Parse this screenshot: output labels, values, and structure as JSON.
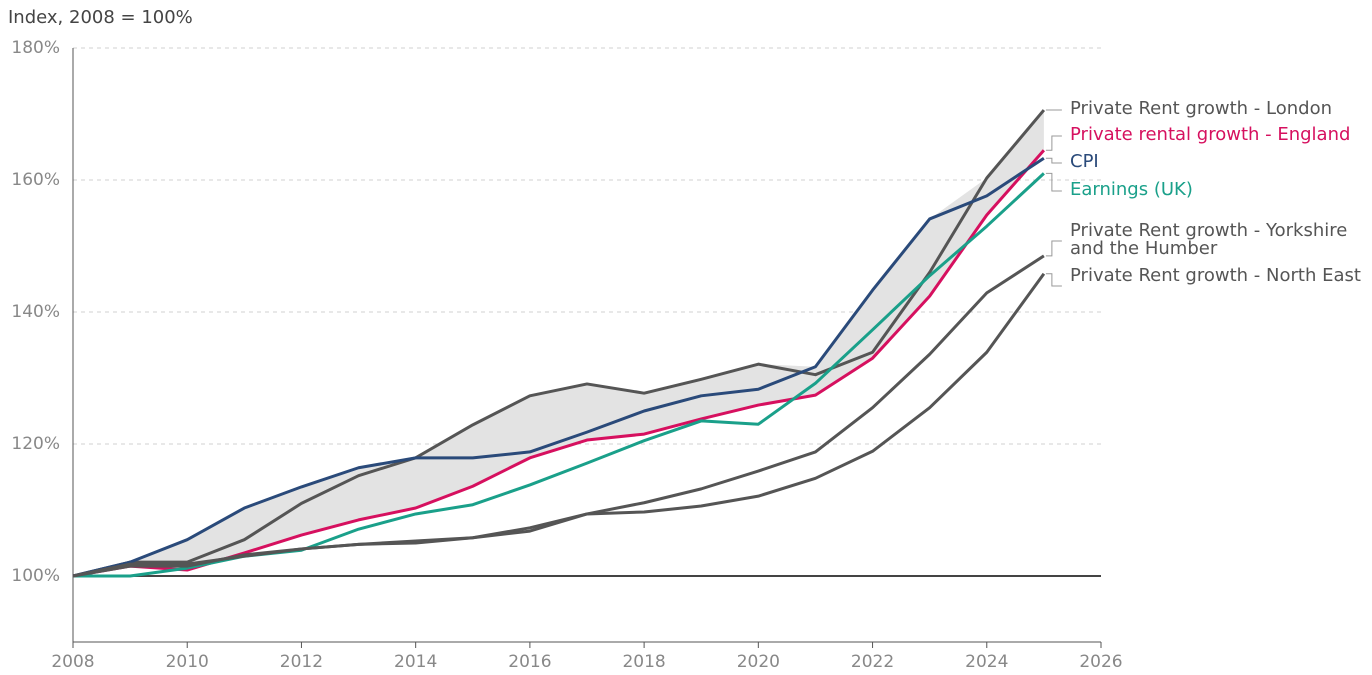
{
  "chart_data": {
    "type": "line",
    "title": "Index, 2008 = 100%",
    "x": [
      2008,
      2009,
      2010,
      2011,
      2012,
      2013,
      2014,
      2015,
      2016,
      2017,
      2018,
      2019,
      2020,
      2021,
      2022,
      2023,
      2024,
      2025
    ],
    "series": [
      {
        "name": "Private Rent growth - London",
        "color": "#555555",
        "values": [
          100,
          102.1,
          102.1,
          105.5,
          111,
          115.2,
          117.9,
          122.9,
          127.3,
          129.1,
          127.7,
          129.8,
          132.1,
          130.5,
          133.9,
          146,
          160.3,
          170.6
        ]
      },
      {
        "name": "Private rental growth - England",
        "color": "#d6105f",
        "values": [
          100,
          101.5,
          100.9,
          103.5,
          106.2,
          108.5,
          110.3,
          113.6,
          117.9,
          120.6,
          121.5,
          123.8,
          125.9,
          127.4,
          133,
          142.4,
          154.7,
          164.5
        ]
      },
      {
        "name": "CPI",
        "color": "#2a4a7a",
        "values": [
          100,
          102.1,
          105.5,
          110.3,
          113.5,
          116.4,
          117.9,
          117.9,
          118.8,
          121.8,
          125,
          127.3,
          128.3,
          131.7,
          143.3,
          154.1,
          157.6,
          163.3
        ]
      },
      {
        "name": "Earnings (UK)",
        "color": "#1aa08a",
        "values": [
          100,
          100,
          101.2,
          103,
          103.9,
          107.1,
          109.4,
          110.8,
          113.8,
          117.1,
          120.5,
          123.5,
          123,
          129.2,
          137.3,
          145.5,
          153,
          161
        ]
      },
      {
        "name": "Private Rent growth - Yorkshire and the Humber",
        "color": "#555555",
        "values": [
          100,
          101.8,
          101.8,
          103,
          104.1,
          104.8,
          105.3,
          105.8,
          107.3,
          109.4,
          111.1,
          113.2,
          115.9,
          118.8,
          125.5,
          133.6,
          142.9,
          148.5
        ]
      },
      {
        "name": "Private Rent growth - North East",
        "color": "#555555",
        "values": [
          100,
          101.5,
          101.5,
          103.2,
          104.1,
          104.8,
          105,
          105.8,
          106.8,
          109.4,
          109.7,
          110.6,
          112.1,
          114.8,
          118.9,
          125.5,
          133.9,
          145.8
        ]
      }
    ],
    "xlim": [
      2008,
      2026
    ],
    "xticks": [
      2008,
      2010,
      2012,
      2014,
      2016,
      2018,
      2020,
      2022,
      2024,
      2026
    ],
    "ylim": [
      90,
      180
    ],
    "yticks": [
      {
        "value": 100,
        "label": "100%"
      },
      {
        "value": 120,
        "label": "120%"
      },
      {
        "value": 140,
        "label": "140%"
      },
      {
        "value": 160,
        "label": "160%"
      },
      {
        "value": 180,
        "label": "180%"
      }
    ],
    "grid": true,
    "band_color": "#e3e3e3"
  }
}
